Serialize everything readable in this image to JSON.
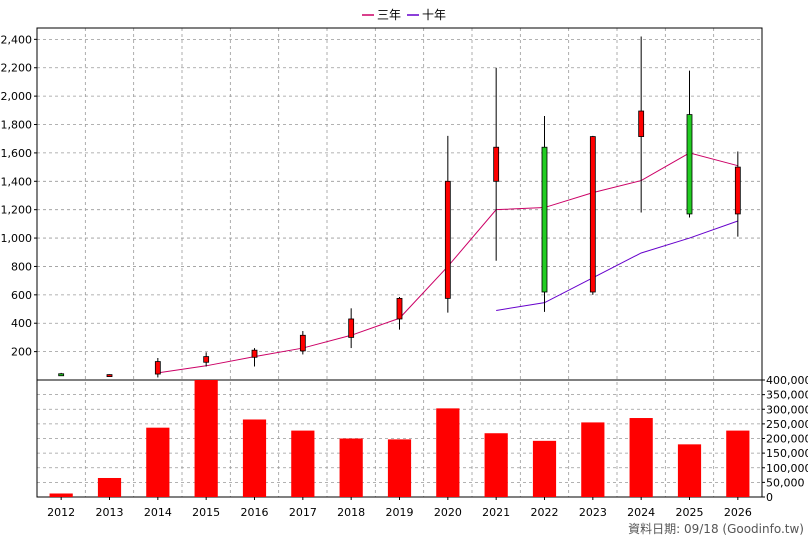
{
  "chart_data": [
    {
      "type": "candlestick",
      "legend": [
        {
          "name": "三年",
          "color": "#cc0066"
        },
        {
          "name": "十年",
          "color": "#6600cc"
        }
      ],
      "legend_position": "top-center",
      "years": [
        "2012",
        "2013",
        "2014",
        "2015",
        "2016",
        "2017",
        "2018",
        "2019",
        "2020",
        "2021",
        "2022",
        "2023",
        "2024",
        "2025",
        "2026"
      ],
      "yticks": [
        200,
        400,
        600,
        800,
        1000,
        1200,
        1400,
        1600,
        1800,
        2000,
        2200,
        2400
      ],
      "ytick_labels": [
        "200",
        "400",
        "600",
        "800",
        "1,000",
        "1,200",
        "1,400",
        "1,600",
        "1,800",
        "2,000",
        "2,200",
        "2,400"
      ],
      "ylim": [
        0,
        2480
      ],
      "grid": true,
      "candles": [
        {
          "year": "2012",
          "open": 44,
          "high": 50,
          "low": 36,
          "close": 42
        },
        {
          "year": "2013",
          "open": 28,
          "high": 40,
          "low": 22,
          "close": 38
        },
        {
          "year": "2014",
          "open": 42,
          "high": 155,
          "low": 18,
          "close": 130
        },
        {
          "year": "2015",
          "open": 125,
          "high": 195,
          "low": 95,
          "close": 165
        },
        {
          "year": "2016",
          "open": 160,
          "high": 225,
          "low": 95,
          "close": 210
        },
        {
          "year": "2017",
          "open": 205,
          "high": 345,
          "low": 180,
          "close": 315
        },
        {
          "year": "2018",
          "open": 300,
          "high": 505,
          "low": 225,
          "close": 430
        },
        {
          "year": "2019",
          "open": 430,
          "high": 585,
          "low": 355,
          "close": 575
        },
        {
          "year": "2020",
          "open": 575,
          "high": 1720,
          "low": 475,
          "close": 1400
        },
        {
          "year": "2021",
          "open": 1400,
          "high": 2200,
          "low": 840,
          "close": 1640
        },
        {
          "year": "2022",
          "open": 1640,
          "high": 1860,
          "low": 480,
          "close": 620
        },
        {
          "year": "2023",
          "open": 620,
          "high": 1720,
          "low": 600,
          "close": 1715
        },
        {
          "year": "2024",
          "open": 1715,
          "high": 2420,
          "low": 1180,
          "close": 1895
        },
        {
          "year": "2025",
          "open": 1870,
          "high": 2180,
          "low": 1145,
          "close": 1170
        },
        {
          "year": "2026",
          "open": 1170,
          "high": 1610,
          "low": 1010,
          "close": 1500
        }
      ],
      "series": [
        {
          "name": "三年",
          "color": "#cc0066",
          "points": [
            [
              "2014",
              50
            ],
            [
              "2015",
              100
            ],
            [
              "2016",
              165
            ],
            [
              "2017",
              225
            ],
            [
              "2018",
              315
            ],
            [
              "2019",
              435
            ],
            [
              "2020",
              800
            ],
            [
              "2021",
              1200
            ],
            [
              "2022",
              1215
            ],
            [
              "2023",
              1320
            ],
            [
              "2024",
              1405
            ],
            [
              "2025",
              1600
            ],
            [
              "2026",
              1510
            ]
          ]
        },
        {
          "name": "十年",
          "color": "#6600cc",
          "points": [
            [
              "2021",
              490
            ],
            [
              "2022",
              545
            ],
            [
              "2023",
              720
            ],
            [
              "2024",
              895
            ],
            [
              "2025",
              1000
            ],
            [
              "2026",
              1120
            ]
          ]
        }
      ]
    },
    {
      "type": "bar",
      "categories": [
        "2012",
        "2013",
        "2014",
        "2015",
        "2016",
        "2017",
        "2018",
        "2019",
        "2020",
        "2021",
        "2022",
        "2023",
        "2024",
        "2025",
        "2026"
      ],
      "values": [
        12000,
        65000,
        237000,
        400000,
        265000,
        227000,
        200000,
        197000,
        303000,
        218000,
        192000,
        255000,
        270000,
        180000,
        227000
      ],
      "ylim": [
        0,
        400000
      ],
      "yticks": [
        0,
        50000,
        100000,
        150000,
        200000,
        250000,
        300000,
        350000,
        400000
      ],
      "ytick_labels": [
        "0",
        "50,000",
        "100,000",
        "150,000",
        "200,000",
        "250,000",
        "300,000",
        "350,000",
        "400,000"
      ],
      "color": "#ff0000",
      "grid": true
    }
  ],
  "footer": {
    "source_credit": "資料日期: 09/18 (Goodinfo.tw)"
  }
}
